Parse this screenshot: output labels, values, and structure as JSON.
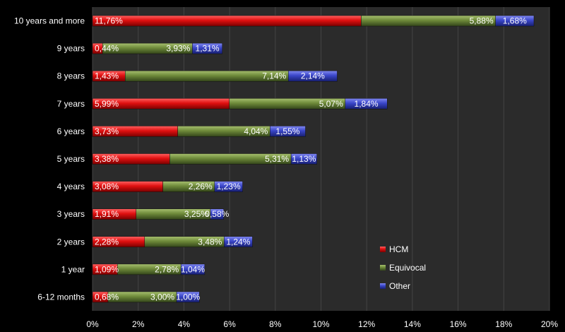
{
  "chart_data": {
    "type": "bar",
    "orientation": "horizontal",
    "stacked": true,
    "categories": [
      "10 years and more",
      "9 years",
      "8 years",
      "7 years",
      "6 years",
      "5 years",
      "4 years",
      "3 years",
      "2 years",
      "1 year",
      "6-12 months"
    ],
    "series": [
      {
        "name": "HCM",
        "color": "#e01010",
        "values": [
          11.76,
          0.44,
          1.43,
          5.99,
          3.73,
          3.38,
          3.08,
          1.91,
          2.28,
          1.09,
          0.68
        ],
        "labels": [
          "11,76%",
          "0,44%",
          "1,43%",
          "5,99%",
          "3,73%",
          "3,38%",
          "3,08%",
          "1,91%",
          "2,28%",
          "1,09%",
          "0,68%"
        ]
      },
      {
        "name": "Equivocal",
        "color": "#6e8a3a",
        "values": [
          5.88,
          3.93,
          7.14,
          5.07,
          4.04,
          5.31,
          2.26,
          3.25,
          3.48,
          2.78,
          3.0
        ],
        "labels": [
          "5,88%",
          "3,93%",
          "7,14%",
          "5,07%",
          "4,04%",
          "5,31%",
          "2,26%",
          "3,25%",
          "3,48%",
          "2,78%",
          "3,00%"
        ]
      },
      {
        "name": "Other",
        "color": "#3a46c8",
        "values": [
          1.68,
          1.31,
          2.14,
          1.84,
          1.55,
          1.13,
          1.23,
          0.58,
          1.24,
          1.04,
          1.0
        ],
        "labels": [
          "1,68%",
          "1,31%",
          "2,14%",
          "1,84%",
          "1,55%",
          "1,13%",
          "1,23%",
          "0,58%",
          "1,24%",
          "1,04%",
          "1,00%"
        ]
      }
    ],
    "xlim": [
      0,
      20
    ],
    "x_ticks": [
      "0%",
      "2%",
      "4%",
      "6%",
      "8%",
      "10%",
      "12%",
      "14%",
      "16%",
      "18%",
      "20%"
    ],
    "grid": true,
    "legend_position": "right",
    "plot_background": "#2b2b2b",
    "grid_color": "#444444"
  }
}
